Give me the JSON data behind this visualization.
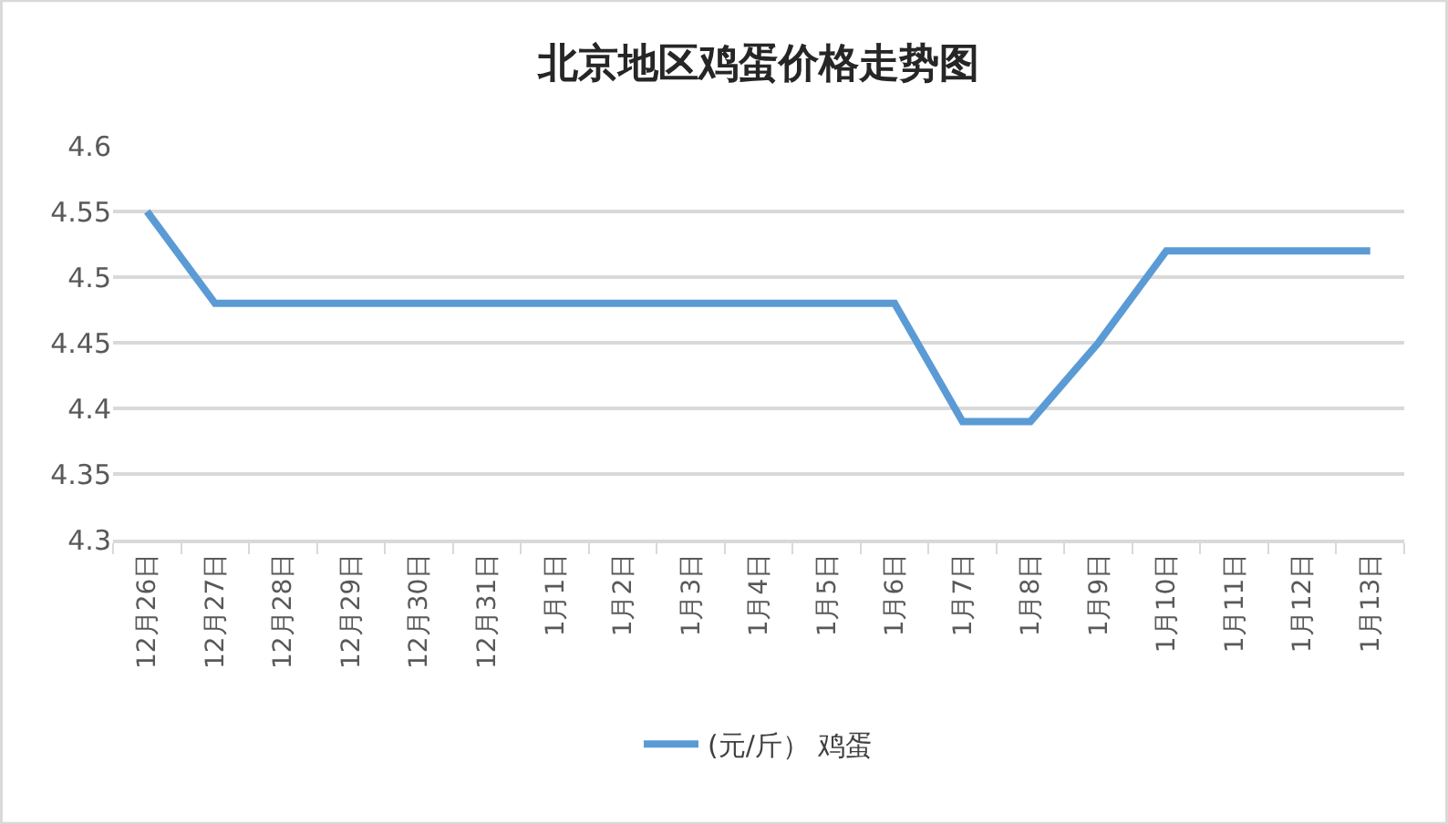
{
  "chart_data": {
    "type": "line",
    "title": "北京地区鸡蛋价格走势图",
    "categories": [
      "12月26日",
      "12月27日",
      "12月28日",
      "12月29日",
      "12月30日",
      "12月31日",
      "1月1日",
      "1月2日",
      "1月3日",
      "1月4日",
      "1月5日",
      "1月6日",
      "1月7日",
      "1月8日",
      "1月9日",
      "1月10日",
      "1月11日",
      "1月12日",
      "1月13日"
    ],
    "series": [
      {
        "name": "(元/斤） 鸡蛋",
        "color": "#5b9bd5",
        "values": [
          4.55,
          4.48,
          4.48,
          4.48,
          4.48,
          4.48,
          4.48,
          4.48,
          4.48,
          4.48,
          4.48,
          4.48,
          4.39,
          4.39,
          4.45,
          4.52,
          4.52,
          4.52,
          4.52
        ]
      }
    ],
    "ylim": [
      4.3,
      4.6
    ],
    "yticks": [
      4.3,
      4.35,
      4.4,
      4.45,
      4.5,
      4.55,
      4.6
    ],
    "grid": "y",
    "legend": "bottom",
    "marker": "none",
    "line_style": "solid"
  }
}
